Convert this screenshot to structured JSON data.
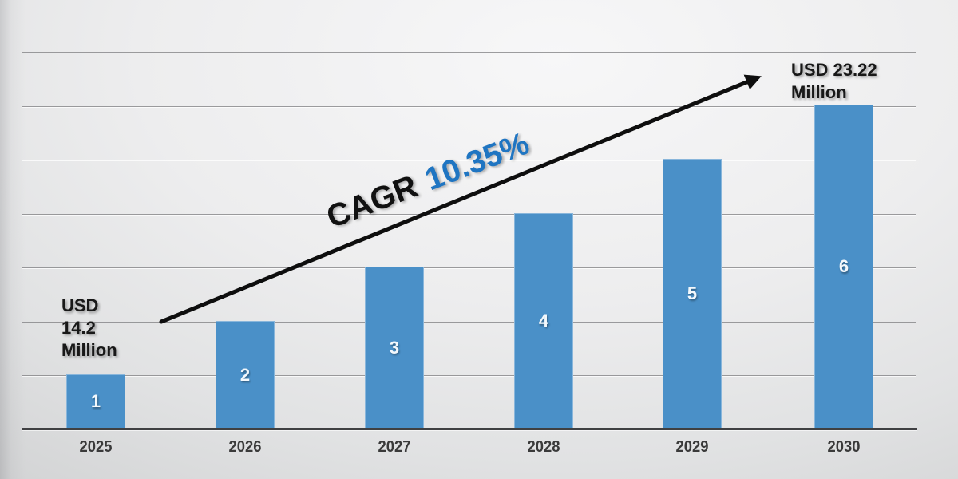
{
  "chart_data": {
    "type": "bar",
    "title": "",
    "xlabel": "",
    "ylabel": "",
    "categories": [
      "2025",
      "2026",
      "2027",
      "2028",
      "2029",
      "2030"
    ],
    "values": [
      1,
      2,
      3,
      4,
      5,
      6
    ],
    "bar_labels": [
      "1",
      "2",
      "3",
      "4",
      "5",
      "6"
    ],
    "ylim": [
      0,
      7
    ],
    "gridlines": 7,
    "grid": "horizontal",
    "legend": "none",
    "bar_color": "#4a90c8",
    "annotations": {
      "start_value": "USD 14.2 Million",
      "end_value": "USD 23.22 Million",
      "cagr": "CAGR 10.35%"
    }
  },
  "annotations": {
    "start": "USD\n14.2\nMillion",
    "end": "USD 23.22\nMillion",
    "cagr_label": "CAGR",
    "cagr_value": "10.35%"
  },
  "colors": {
    "bar": "#4a90c8",
    "cagr_value_blue": "#1f75c2",
    "annotation_text": "#181818",
    "axis_line": "#3f4042",
    "gridline": "#7d7d80",
    "arrow": "#0e0e0e",
    "background_light": "#f7f7f8",
    "background_dark": "#c5c6c7"
  }
}
